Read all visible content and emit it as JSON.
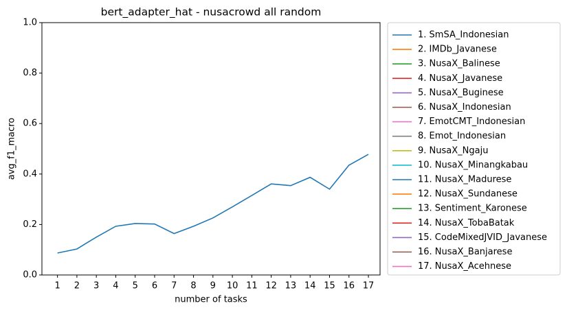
{
  "chart_data": {
    "type": "line",
    "title": "bert_adapter_hat - nusacrowd all random",
    "x_label": "number of tasks",
    "y_label": "avg_f1_macro",
    "x": [
      1,
      2,
      3,
      4,
      5,
      6,
      7,
      8,
      9,
      10,
      11,
      12,
      13,
      14,
      15,
      16,
      17
    ],
    "xlim": [
      0.2,
      17.6
    ],
    "xticks": [
      1,
      2,
      3,
      4,
      5,
      6,
      7,
      8,
      9,
      10,
      11,
      12,
      13,
      14,
      15,
      16,
      17
    ],
    "ylim": [
      0,
      1
    ],
    "yticks": [
      {
        "value": 0,
        "label": "0.0"
      },
      0.2,
      0.4,
      0.6,
      0.8,
      {
        "value": 1,
        "label": "1.0"
      }
    ],
    "legend": "outside right",
    "series": [
      {
        "name": "1. SmSA_Indonesian",
        "color": "#1f77b4",
        "values": [
          0.087,
          0.103,
          0.15,
          0.193,
          0.204,
          0.202,
          0.164,
          0.193,
          0.226,
          0.27,
          0.315,
          0.361,
          0.354,
          0.387,
          0.34,
          0.435,
          0.478
        ]
      },
      {
        "name": "2. IMDb_Javanese",
        "color": "#ff7f0e",
        "values": [
          null,
          null,
          null,
          null,
          null,
          null,
          null,
          null,
          null,
          null,
          null,
          null,
          null,
          null,
          null,
          null,
          null
        ]
      },
      {
        "name": "3. NusaX_Balinese",
        "color": "#2ca02c",
        "values": [
          null,
          null,
          null,
          null,
          null,
          null,
          null,
          null,
          null,
          null,
          null,
          null,
          null,
          null,
          null,
          null,
          null
        ]
      },
      {
        "name": "4. NusaX_Javanese",
        "color": "#d62728",
        "values": [
          null,
          null,
          null,
          null,
          null,
          null,
          null,
          null,
          null,
          null,
          null,
          null,
          null,
          null,
          null,
          null,
          null
        ]
      },
      {
        "name": "5. NusaX_Buginese",
        "color": "#9467bd",
        "values": [
          null,
          null,
          null,
          null,
          null,
          null,
          null,
          null,
          null,
          null,
          null,
          null,
          null,
          null,
          null,
          null,
          null
        ]
      },
      {
        "name": "6. NusaX_Indonesian",
        "color": "#8c564b",
        "values": [
          null,
          null,
          null,
          null,
          null,
          null,
          null,
          null,
          null,
          null,
          null,
          null,
          null,
          null,
          null,
          null,
          null
        ]
      },
      {
        "name": "7. EmotCMT_Indonesian",
        "color": "#e377c2",
        "values": [
          null,
          null,
          null,
          null,
          null,
          null,
          null,
          null,
          null,
          null,
          null,
          null,
          null,
          null,
          null,
          null,
          null
        ]
      },
      {
        "name": "8. Emot_Indonesian",
        "color": "#7f7f7f",
        "values": [
          null,
          null,
          null,
          null,
          null,
          null,
          null,
          null,
          null,
          null,
          null,
          null,
          null,
          null,
          null,
          null,
          null
        ]
      },
      {
        "name": "9. NusaX_Ngaju",
        "color": "#bcbd22",
        "values": [
          null,
          null,
          null,
          null,
          null,
          null,
          null,
          null,
          null,
          null,
          null,
          null,
          null,
          null,
          null,
          null,
          null
        ]
      },
      {
        "name": "10. NusaX_Minangkabau",
        "color": "#17becf",
        "values": [
          null,
          null,
          null,
          null,
          null,
          null,
          null,
          null,
          null,
          null,
          null,
          null,
          null,
          null,
          null,
          null,
          null
        ]
      },
      {
        "name": "11. NusaX_Madurese",
        "color": "#1f77b4",
        "values": [
          null,
          null,
          null,
          null,
          null,
          null,
          null,
          null,
          null,
          null,
          null,
          null,
          null,
          null,
          null,
          null,
          null
        ]
      },
      {
        "name": "12. NusaX_Sundanese",
        "color": "#ff7f0e",
        "values": [
          null,
          null,
          null,
          null,
          null,
          null,
          null,
          null,
          null,
          null,
          null,
          null,
          null,
          null,
          null,
          null,
          null
        ]
      },
      {
        "name": "13. Sentiment_Karonese",
        "color": "#2ca02c",
        "values": [
          null,
          null,
          null,
          null,
          null,
          null,
          null,
          null,
          null,
          null,
          null,
          null,
          null,
          null,
          null,
          null,
          null
        ]
      },
      {
        "name": "14. NusaX_TobaBatak",
        "color": "#d62728",
        "values": [
          null,
          null,
          null,
          null,
          null,
          null,
          null,
          null,
          null,
          null,
          null,
          null,
          null,
          null,
          null,
          null,
          null
        ]
      },
      {
        "name": "15. CodeMixedJVID_Javanese",
        "color": "#9467bd",
        "values": [
          null,
          null,
          null,
          null,
          null,
          null,
          null,
          null,
          null,
          null,
          null,
          null,
          null,
          null,
          null,
          null,
          null
        ]
      },
      {
        "name": "16. NusaX_Banjarese",
        "color": "#8c564b",
        "values": [
          null,
          null,
          null,
          null,
          null,
          null,
          null,
          null,
          null,
          null,
          null,
          null,
          null,
          null,
          null,
          null,
          null
        ]
      },
      {
        "name": "17. NusaX_Acehnese",
        "color": "#e377c2",
        "values": [
          null,
          null,
          null,
          null,
          null,
          null,
          null,
          null,
          null,
          null,
          null,
          null,
          null,
          null,
          null,
          null,
          null
        ]
      }
    ]
  }
}
